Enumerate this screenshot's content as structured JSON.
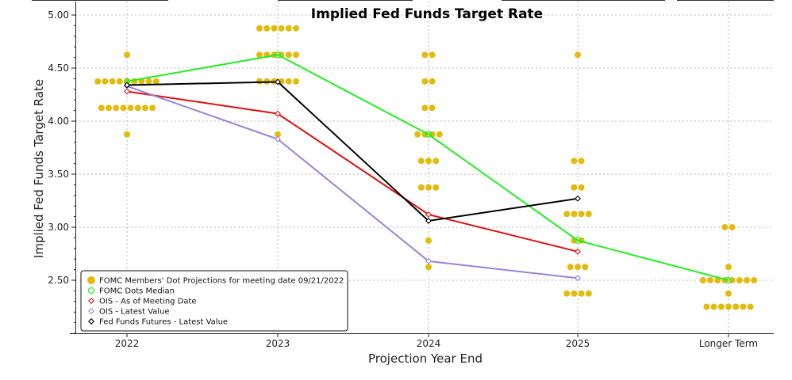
{
  "chart_data": {
    "type": "scatter",
    "title": "Implied Fed Funds Target Rate",
    "xlabel": "Projection Year End",
    "ylabel": "Implied Fed Funds Target Rate",
    "categories": [
      "2022",
      "2023",
      "2024",
      "2025",
      "Longer Term"
    ],
    "ylim": [
      2.0,
      5.0
    ],
    "yticks": [
      "5.00",
      "4.50",
      "4.00",
      "3.50",
      "3.00",
      "2.50"
    ],
    "grid": true,
    "legend_position": "bottom-left",
    "dots": {
      "name": "FOMC Members' Dot Projections for meeting date 09/21/2022",
      "color": "#e3bb0c",
      "rows": [
        {
          "category": "2022",
          "value": 4.625,
          "count": 1
        },
        {
          "category": "2022",
          "value": 4.375,
          "count": 9
        },
        {
          "category": "2022",
          "value": 4.125,
          "count": 8
        },
        {
          "category": "2022",
          "value": 3.875,
          "count": 1
        },
        {
          "category": "2023",
          "value": 4.875,
          "count": 6
        },
        {
          "category": "2023",
          "value": 4.625,
          "count": 6
        },
        {
          "category": "2023",
          "value": 4.375,
          "count": 6
        },
        {
          "category": "2023",
          "value": 3.875,
          "count": 1
        },
        {
          "category": "2024",
          "value": 4.625,
          "count": 2
        },
        {
          "category": "2024",
          "value": 4.375,
          "count": 2
        },
        {
          "category": "2024",
          "value": 4.125,
          "count": 2
        },
        {
          "category": "2024",
          "value": 3.875,
          "count": 4
        },
        {
          "category": "2024",
          "value": 3.625,
          "count": 3
        },
        {
          "category": "2024",
          "value": 3.375,
          "count": 3
        },
        {
          "category": "2024",
          "value": 2.875,
          "count": 1
        },
        {
          "category": "2024",
          "value": 2.625,
          "count": 1
        },
        {
          "category": "2025",
          "value": 4.625,
          "count": 1
        },
        {
          "category": "2025",
          "value": 3.625,
          "count": 2
        },
        {
          "category": "2025",
          "value": 3.375,
          "count": 2
        },
        {
          "category": "2025",
          "value": 3.125,
          "count": 4
        },
        {
          "category": "2025",
          "value": 2.875,
          "count": 2
        },
        {
          "category": "2025",
          "value": 2.625,
          "count": 3
        },
        {
          "category": "2025",
          "value": 2.375,
          "count": 4
        },
        {
          "category": "Longer Term",
          "value": 3.0,
          "count": 2
        },
        {
          "category": "Longer Term",
          "value": 2.625,
          "count": 1
        },
        {
          "category": "Longer Term",
          "value": 2.5,
          "count": 8
        },
        {
          "category": "Longer Term",
          "value": 2.375,
          "count": 1
        },
        {
          "category": "Longer Term",
          "value": 2.25,
          "count": 7
        }
      ]
    },
    "series": [
      {
        "name": "FOMC Dots Median",
        "color": "#22ee22",
        "marker": "circle",
        "values": [
          4.375,
          4.625,
          3.875,
          2.875,
          2.5
        ]
      },
      {
        "name": "OIS - As of Meeting Date",
        "color": "#dd1111",
        "marker": "diamond",
        "values": [
          4.28,
          4.07,
          3.12,
          2.77,
          null
        ]
      },
      {
        "name": "OIS - Latest Value",
        "color": "#9b82d6",
        "marker": "diamond",
        "values": [
          4.33,
          3.83,
          2.68,
          2.52,
          null
        ]
      },
      {
        "name": "Fed Funds Futures - Latest Value",
        "color": "#000000",
        "marker": "diamond",
        "values": [
          4.34,
          4.37,
          3.06,
          3.27,
          null
        ]
      }
    ]
  }
}
